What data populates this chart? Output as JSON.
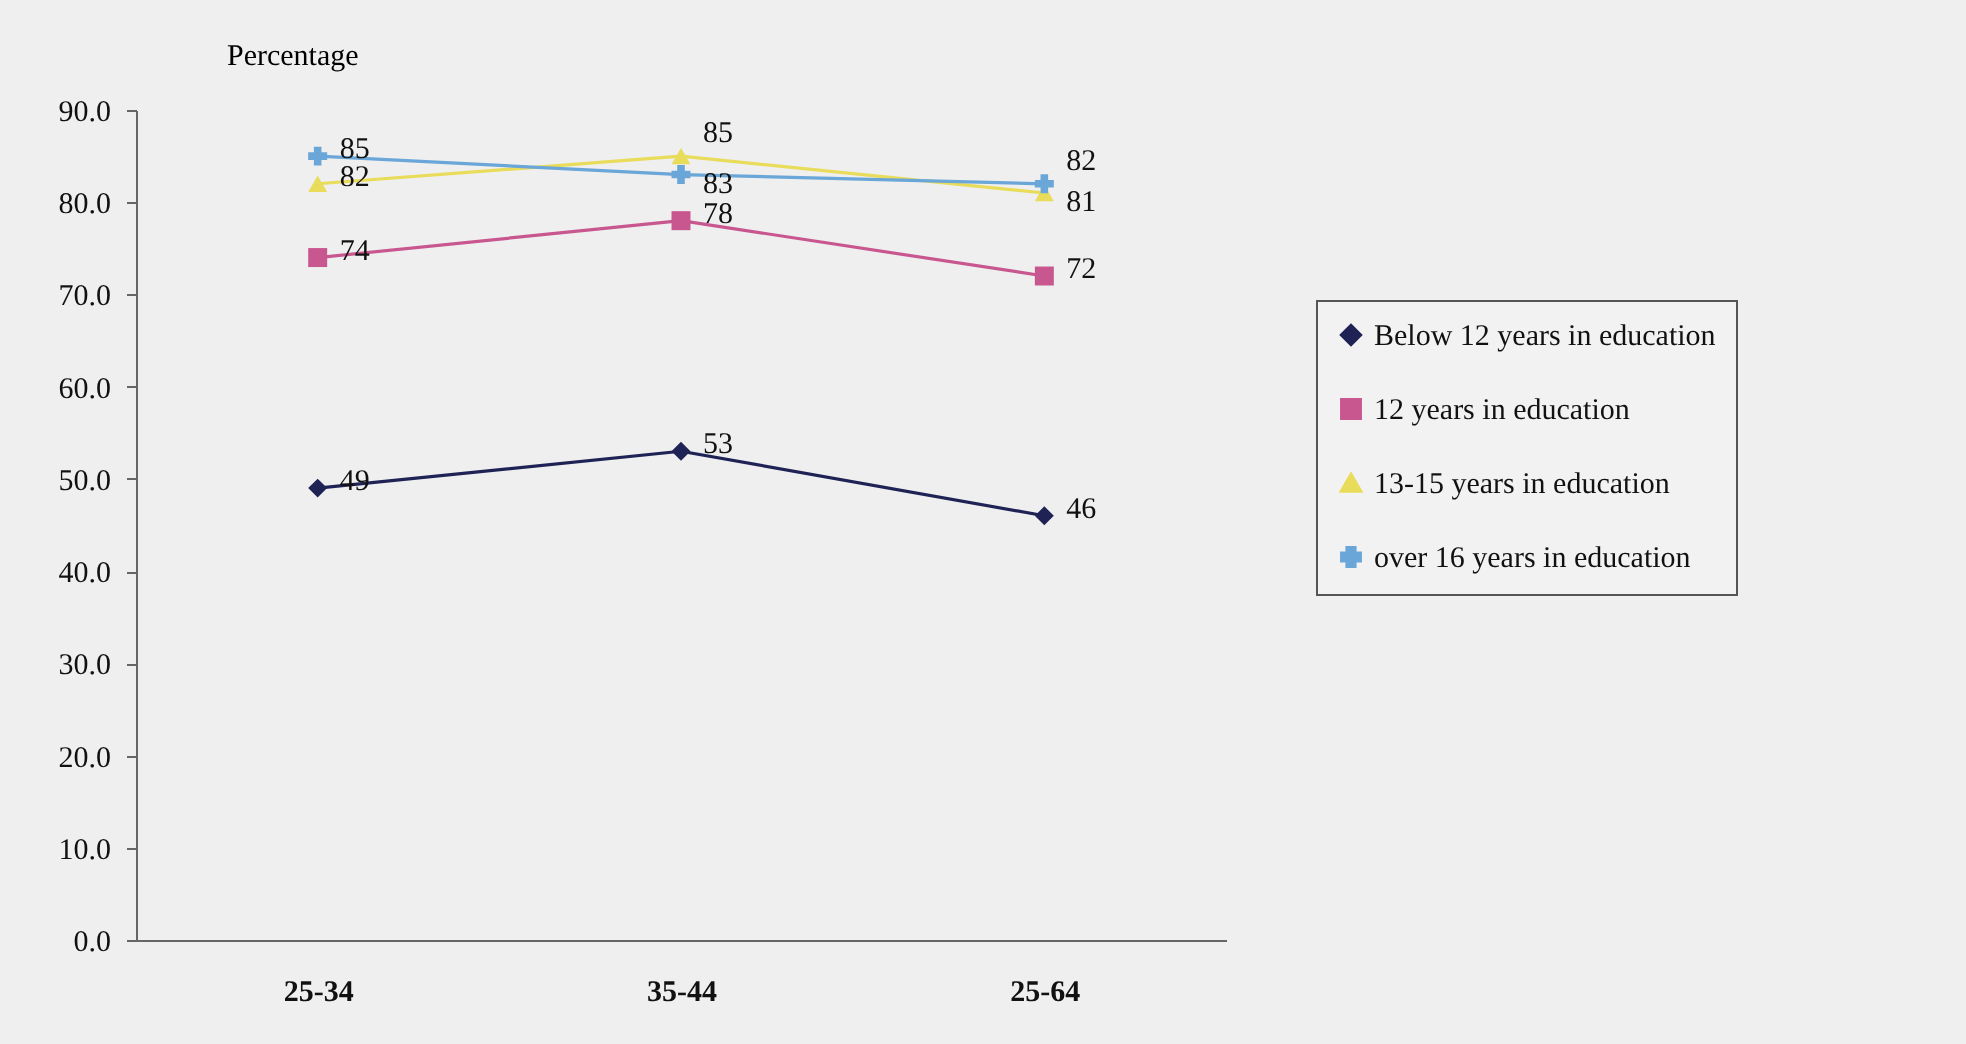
{
  "chart_data": {
    "type": "line",
    "ylabel": "Percentage",
    "categories": [
      "25-34",
      "35-44",
      "25-64"
    ],
    "series": [
      {
        "name": "Below 12 years in education",
        "color": "#1f2255",
        "marker": "diamond",
        "values": [
          49,
          53,
          46
        ]
      },
      {
        "name": "12 years in education",
        "color": "#c8568f",
        "marker": "square",
        "values": [
          74,
          78,
          72
        ]
      },
      {
        "name": "13-15 years in education",
        "color": "#e8dc5a",
        "marker": "triangle",
        "values": [
          82,
          85,
          81
        ]
      },
      {
        "name": "over 16 years in education",
        "color": "#6aa6d8",
        "marker": "cross",
        "values": [
          85,
          83,
          82
        ]
      }
    ],
    "ylim": [
      0,
      90
    ],
    "yticks": [
      {
        "value": 0,
        "label": "0.0"
      },
      {
        "value": 10,
        "label": "10.0"
      },
      {
        "value": 20,
        "label": "20.0"
      },
      {
        "value": 30,
        "label": "30.0"
      },
      {
        "value": 40,
        "label": "40.0"
      },
      {
        "value": 50,
        "label": "50.0"
      },
      {
        "value": 60,
        "label": "60.0"
      },
      {
        "value": 70,
        "label": "70.0"
      },
      {
        "value": 80,
        "label": "80.0"
      },
      {
        "value": 90,
        "label": "90.0"
      }
    ],
    "data_labels": true,
    "legend": "right",
    "grid": false
  }
}
